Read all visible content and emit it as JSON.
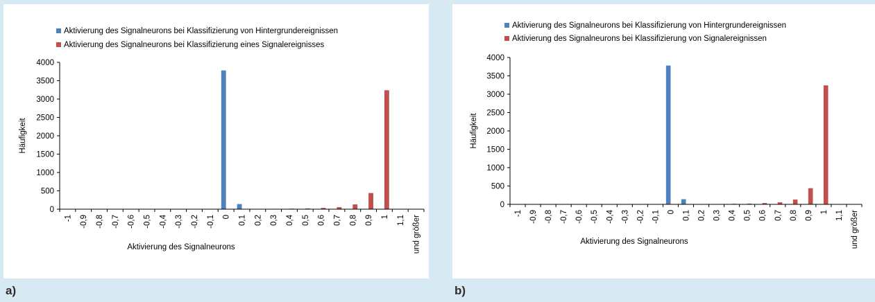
{
  "colors": {
    "background": "#d7e9f3",
    "panel": "#ffffff",
    "series_background": "#4f81bd",
    "series_signal": "#c0504d"
  },
  "captions": {
    "a": "a)",
    "b": "b)"
  },
  "chart_data": [
    {
      "type": "bar",
      "ylabel": "Häufigkeit",
      "xlabel": "Aktivierung des Signalneurons",
      "categories": [
        "-1",
        "-0,9",
        "-0,8",
        "-0,7",
        "-0,6",
        "-0,5",
        "-0,4",
        "-0,3",
        "-0,2",
        "-0,1",
        "0",
        "0,1",
        "0,2",
        "0,3",
        "0,4",
        "0,5",
        "0,6",
        "0,7",
        "0,8",
        "0,9",
        "1",
        "1,1",
        "und größer"
      ],
      "ylim": [
        0,
        4000
      ],
      "yticks": [
        "0",
        "500",
        "1000",
        "1500",
        "2000",
        "2500",
        "3000",
        "3500",
        "4000"
      ],
      "legend_position": "top",
      "grid": false,
      "series": [
        {
          "name": "Aktivierung des Signalneurons bei Klassifizierung von Hintergrundereignissen",
          "values": [
            0,
            0,
            0,
            0,
            0,
            0,
            0,
            0,
            0,
            0,
            3780,
            140,
            5,
            0,
            0,
            0,
            0,
            0,
            0,
            0,
            0,
            0,
            0
          ]
        },
        {
          "name": "Aktivierung des Signalneurons bei Klassifizierung eines Signalereignisses",
          "values": [
            0,
            0,
            0,
            0,
            0,
            0,
            0,
            0,
            0,
            0,
            0,
            0,
            5,
            10,
            15,
            20,
            35,
            55,
            130,
            440,
            3240,
            0,
            0
          ]
        }
      ]
    },
    {
      "type": "bar",
      "ylabel": "Häufigkeit",
      "xlabel": "Aktivierung des Signalneurons",
      "categories": [
        "-1",
        "-0,9",
        "-0,8",
        "-0,7",
        "-0,6",
        "-0,5",
        "-0,4",
        "-0,3",
        "-0,2",
        "-0,1",
        "0",
        "0,1",
        "0,2",
        "0,3",
        "0,4",
        "0,5",
        "0,6",
        "0,7",
        "0,8",
        "0,9",
        "1",
        "1,1",
        "und größer"
      ],
      "ylim": [
        0,
        4000
      ],
      "yticks": [
        "0",
        "500",
        "1000",
        "1500",
        "2000",
        "2500",
        "3000",
        "3500",
        "4000"
      ],
      "legend_position": "top",
      "grid": false,
      "series": [
        {
          "name": "Aktivierung des Signalneurons bei Klassifizierung von Hintergrundereignissen",
          "values": [
            0,
            0,
            0,
            0,
            0,
            0,
            0,
            0,
            0,
            0,
            3780,
            140,
            5,
            0,
            0,
            0,
            0,
            0,
            0,
            0,
            0,
            0,
            0
          ]
        },
        {
          "name": "Aktivierung des Signalneurons bei Klassifizierung von Signalereignissen",
          "values": [
            0,
            0,
            0,
            0,
            0,
            0,
            0,
            0,
            0,
            0,
            0,
            0,
            5,
            10,
            15,
            20,
            35,
            55,
            130,
            440,
            3240,
            0,
            0
          ]
        }
      ]
    }
  ]
}
